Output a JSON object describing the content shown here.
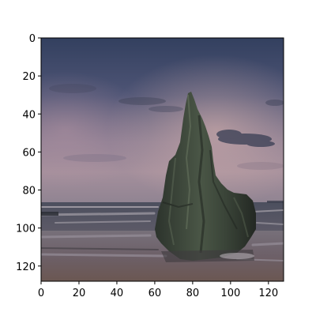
{
  "image": {
    "subject": "sea-stack",
    "palette": {
      "sky_top": "#3d4a6e",
      "sky_mid": "#6f6f8c",
      "horizon_glow": "#b49aa3",
      "sea": "#5a5a66",
      "foam": "#b8b4b8",
      "sand": "#6a5a56",
      "rock_dark": "#262b26",
      "rock_mid": "#3e4a3c",
      "rock_light": "#5a6652"
    }
  },
  "chart_data": {
    "type": "image",
    "title": "",
    "xlabel": "",
    "ylabel": "",
    "xlim": [
      0,
      128
    ],
    "ylim": [
      128,
      0
    ],
    "x_ticks": [
      0,
      20,
      40,
      60,
      80,
      100,
      120
    ],
    "y_ticks": [
      0,
      20,
      40,
      60,
      80,
      100,
      120
    ],
    "x_tick_labels": [
      "0",
      "20",
      "40",
      "60",
      "80",
      "100",
      "120"
    ],
    "y_tick_labels": [
      "0",
      "20",
      "40",
      "60",
      "80",
      "100",
      "120"
    ],
    "grid": false,
    "axis_color": "#000000"
  }
}
